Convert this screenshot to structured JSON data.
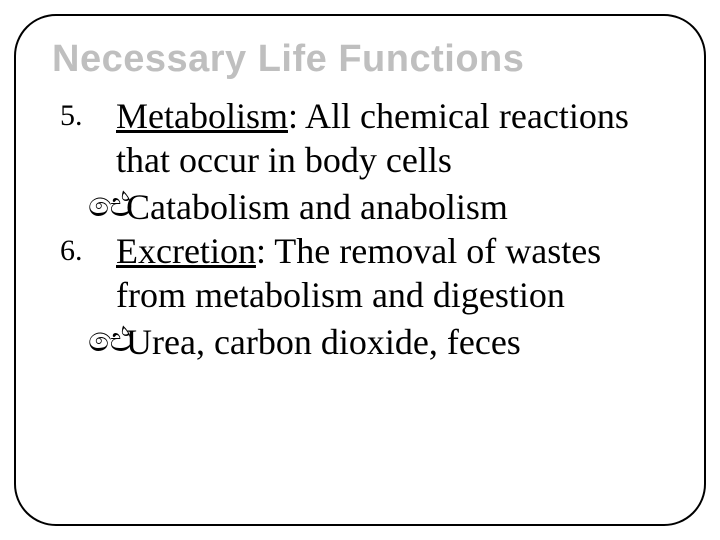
{
  "title": "Necessary Life Functions",
  "colors": {
    "title_color": "#bfbfbf",
    "body_color": "#000000",
    "border_color": "#000000",
    "background": "#ffffff"
  },
  "typography": {
    "title_font": "Arial Black",
    "title_size_pt": 28,
    "body_font": "Times New Roman",
    "body_size_pt": 27,
    "number_size_pt": 22
  },
  "items": [
    {
      "number": "5.",
      "term": "Metabolism",
      "definition": ": All chemical reactions that occur in body cells",
      "sub": "Catabolism and anabolism"
    },
    {
      "number": "6.",
      "term": "Excretion",
      "definition": ": The removal of wastes from metabolism and digestion",
      "sub": "Urea, carbon dioxide, feces"
    }
  ],
  "bullet_glyph": "ඓ"
}
